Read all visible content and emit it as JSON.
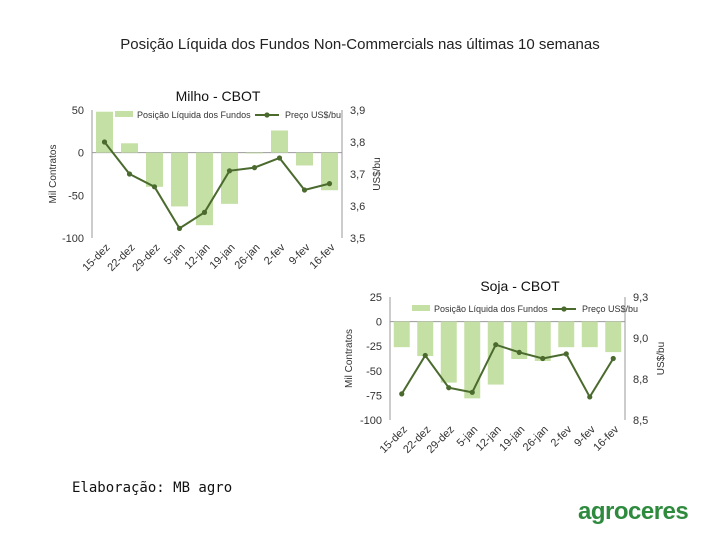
{
  "page": {
    "title": "Posição Líquida dos Fundos Non-Commercials nas últimas 10 semanas",
    "credit": "Elaboração: MB agro",
    "logo": "agroceres"
  },
  "colors": {
    "bar": "#c5e0a5",
    "line": "#4a6a2e",
    "axis": "#999999"
  },
  "chart_data": [
    {
      "type": "bar",
      "title": "Milho - CBOT",
      "categories": [
        "15-dez",
        "22-dez",
        "29-dez",
        "5-jan",
        "12-jan",
        "19-jan",
        "26-jan",
        "2-fev",
        "9-fev",
        "16-fev"
      ],
      "ylabel": "Mil Contratos",
      "y2label": "US$/bu",
      "ylim": [
        -100,
        50
      ],
      "yticks": [
        "50",
        "0",
        "-50",
        "-100"
      ],
      "y2lim": [
        3.5,
        3.9
      ],
      "y2ticks": [
        "3,9",
        "3,8",
        "3,7",
        "3,6",
        "3,5"
      ],
      "legend_position": "top",
      "series": [
        {
          "name": "Posição Líquida dos Fundos",
          "kind": "bar",
          "axis": "left",
          "values": [
            48,
            11,
            -40,
            -63,
            -85,
            -60,
            -1,
            26,
            -15,
            -44
          ]
        },
        {
          "name": "Preço US$/bu",
          "kind": "line",
          "axis": "right",
          "values": [
            3.8,
            3.7,
            3.66,
            3.53,
            3.58,
            3.71,
            3.72,
            3.75,
            3.65,
            3.67
          ]
        }
      ]
    },
    {
      "type": "bar",
      "title": "Soja - CBOT",
      "categories": [
        "15-dez",
        "22-dez",
        "29-dez",
        "5-jan",
        "12-jan",
        "19-jan",
        "26-jan",
        "2-fev",
        "9-fev",
        "16-fev"
      ],
      "ylabel": "Mil Contratos",
      "y2label": "US$/bu",
      "ylim": [
        -100,
        25
      ],
      "yticks": [
        "25",
        "0",
        "-25",
        "-50",
        "-75",
        "-100"
      ],
      "y2lim": [
        8.5,
        9.3
      ],
      "y2ticks": [
        "9,3",
        "9,0",
        "8,8",
        "8,5"
      ],
      "legend_position": "top",
      "series": [
        {
          "name": "Posição Líquida dos Fundos",
          "kind": "bar",
          "axis": "left",
          "values": [
            -26,
            -35,
            -62,
            -78,
            -64,
            -38,
            -40,
            -26,
            -26,
            -31
          ]
        },
        {
          "name": "Preço US$/bu",
          "kind": "line",
          "axis": "right",
          "values": [
            8.67,
            8.92,
            8.71,
            8.68,
            8.99,
            8.94,
            8.9,
            8.93,
            8.65,
            8.9
          ]
        }
      ]
    }
  ]
}
